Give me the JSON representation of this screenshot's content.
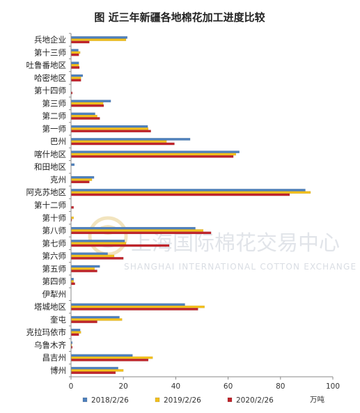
{
  "chart_data": {
    "type": "bar",
    "orientation": "horizontal",
    "title": "图  近三年新疆各地棉花加工进度比较",
    "unit_label": "万吨",
    "xlim": [
      0,
      100
    ],
    "xticks": [
      0,
      20,
      40,
      60,
      80,
      100
    ],
    "grid": false,
    "legend_position": "bottom",
    "categories": [
      "兵地企业",
      "第十三师",
      "吐鲁番地区",
      "哈密地区",
      "第十四师",
      "第三师",
      "第二师",
      "第一师",
      "巴州",
      "喀什地区",
      "和田地区",
      "克州",
      "阿克苏地区",
      "第十二师",
      "第十师",
      "第八师",
      "第七师",
      "第六师",
      "第五师",
      "第四师",
      "伊犁州",
      "塔城地区",
      "奎屯",
      "克拉玛依市",
      "乌鲁木齐",
      "昌吉州",
      "博州"
    ],
    "series": [
      {
        "name": "2018/2/26",
        "color": "#4f81bd",
        "values": [
          21.5,
          2.8,
          3.0,
          4.5,
          0,
          15.2,
          9.2,
          29.3,
          45.5,
          64.3,
          1.3,
          8.8,
          89.5,
          0,
          0,
          47.5,
          20.5,
          14.0,
          11.0,
          1.0,
          0,
          43.5,
          18.5,
          3.5,
          0.5,
          23.5,
          18.0
        ]
      },
      {
        "name": "2019/2/26",
        "color": "#f3c01c",
        "values": [
          21.0,
          3.5,
          3.0,
          3.8,
          0,
          12.3,
          10.0,
          29.5,
          36.5,
          63.0,
          0,
          8.0,
          91.5,
          0,
          1.0,
          50.5,
          21.0,
          16.5,
          9.0,
          1.0,
          0,
          51.0,
          19.5,
          3.8,
          0.3,
          31.2,
          20.0
        ]
      },
      {
        "name": "2020/2/26",
        "color": "#c0242b",
        "values": [
          7.0,
          3.0,
          3.2,
          3.8,
          0.5,
          12.5,
          11.0,
          30.5,
          39.5,
          62.0,
          0,
          7.0,
          83.5,
          1.0,
          0.3,
          53.5,
          37.5,
          20.0,
          10.0,
          1.5,
          0,
          48.5,
          10.0,
          3.0,
          0.5,
          29.5,
          17.0
        ]
      }
    ]
  },
  "watermark": {
    "text_cn": "上海国际棉花交易中心",
    "text_en": "SHANGHAI INTERNATIONAL COTTON EXCHANGE"
  }
}
